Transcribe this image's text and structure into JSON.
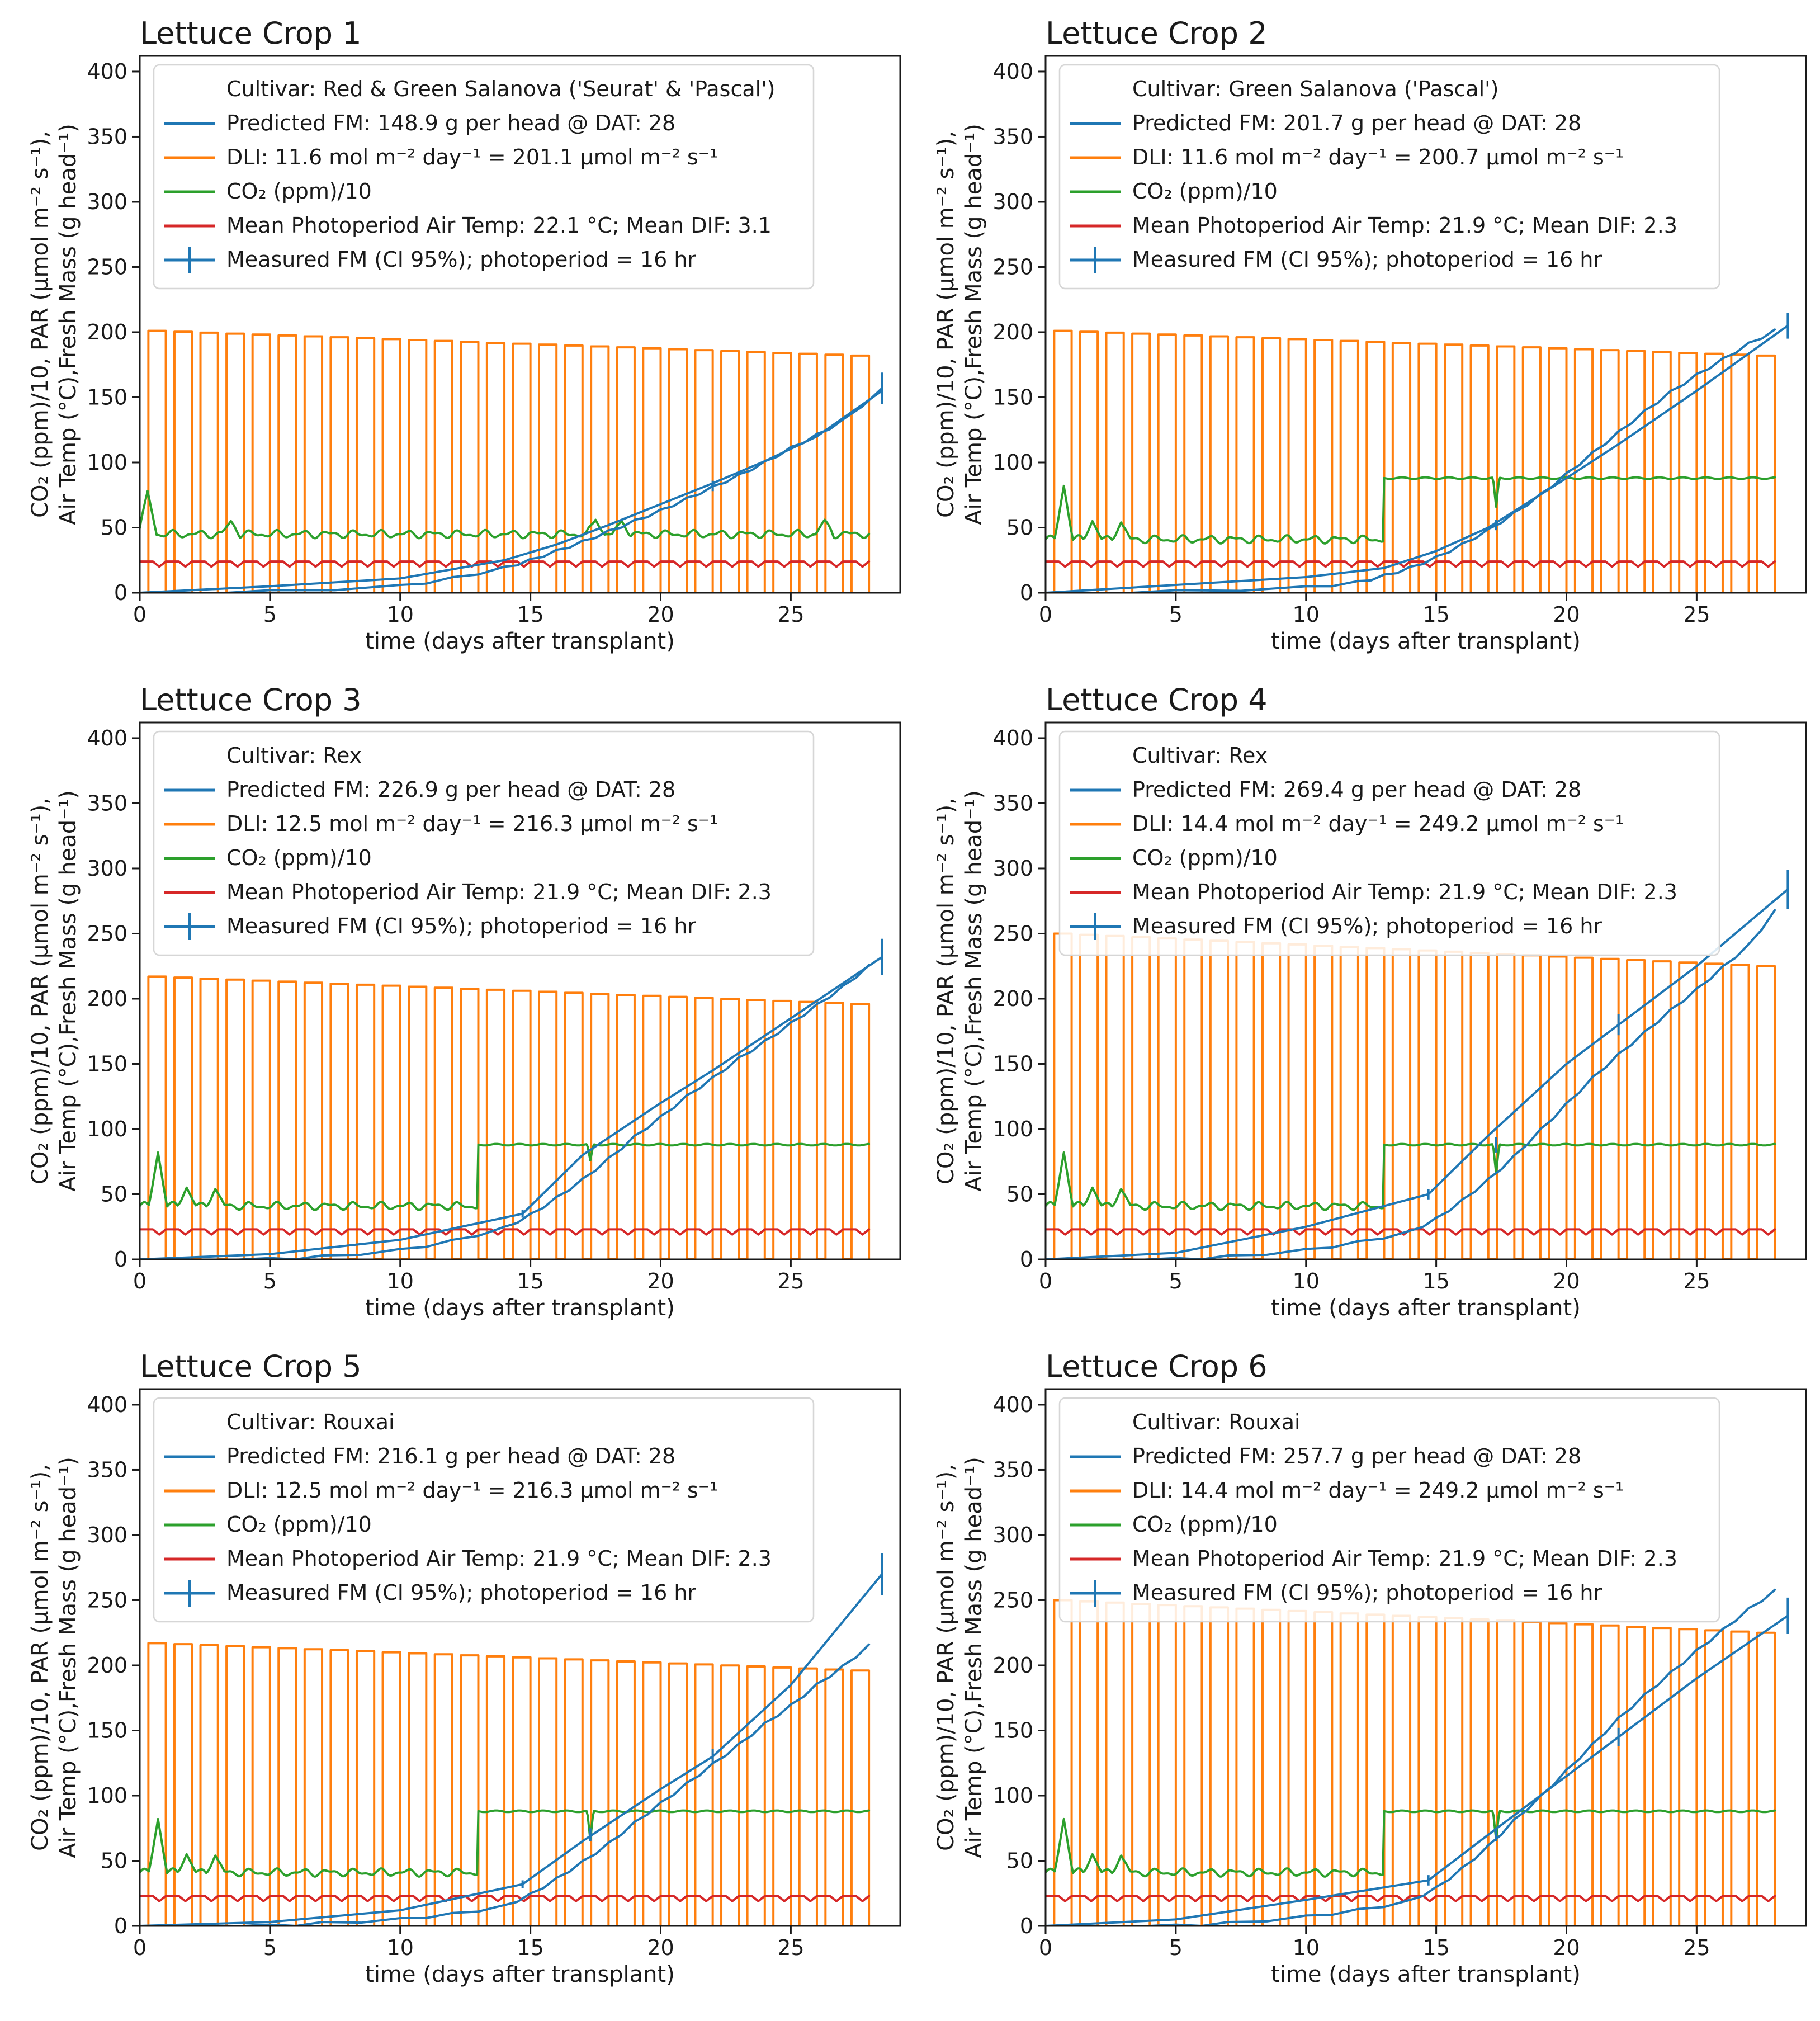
{
  "figure": {
    "shared": {
      "xlabel": "time (days after transplant)",
      "ylabel_line1": "CO₂ (ppm)/10, PAR (µmol m⁻² s⁻¹),",
      "ylabel_line2": "Air Temp (°C),Fresh Mass (g head⁻¹)",
      "x_ticks": [
        0,
        5,
        10,
        15,
        20,
        25
      ],
      "y_ticks": [
        0,
        50,
        100,
        150,
        200,
        250,
        300,
        350,
        400
      ],
      "xlim": [
        0,
        29.2
      ],
      "ylim": [
        0,
        412
      ],
      "legend_co2": "CO₂ (ppm)/10",
      "legend_measured": "Measured FM (CI 95%); photoperiod = 16 hr"
    },
    "colors": {
      "fm": "#1f77b4",
      "par": "#ff7f0e",
      "co2": "#2ca02c",
      "temp": "#d62728",
      "axis": "#1a1a1a"
    }
  },
  "chart_data": [
    {
      "type": "line",
      "title": "Lettuce Crop 1",
      "legend": {
        "cultivar": "Cultivar: Red & Green Salanova ('Seurat' & 'Pascal')",
        "predicted": "Predicted FM: 148.9 g per head @ DAT: 28",
        "dli": "DLI: 11.6 mol m⁻² day⁻¹ = 201.1 µmol m⁻² s⁻¹",
        "temp": "Mean Photoperiod Air Temp: 22.1 °C; Mean DIF: 3.1"
      },
      "par": {
        "start": 201,
        "end": 182,
        "days": 28
      },
      "co2": {
        "base_before": 45,
        "base_after": 45,
        "step_day": null,
        "dips": [],
        "spikes": [
          [
            0.3,
            78
          ],
          [
            3.5,
            55
          ],
          [
            17.5,
            56
          ],
          [
            18.5,
            55
          ],
          [
            26.3,
            56
          ]
        ]
      },
      "temp": {
        "mean": 22,
        "amplitude": 2
      },
      "predicted_fm": {
        "x": [
          0,
          5,
          10,
          14,
          16,
          18,
          20,
          22,
          24,
          26,
          28.5
        ],
        "y": [
          0,
          5,
          11,
          25,
          37,
          52,
          68,
          84,
          101,
          120,
          155
        ]
      },
      "measured_fm": {
        "x": [
          0,
          5,
          10,
          12,
          14,
          15,
          16,
          17,
          18,
          19,
          20,
          21,
          22,
          23,
          24,
          25,
          26,
          27,
          28.5
        ],
        "y": [
          0,
          2,
          6,
          12,
          20,
          26,
          33,
          40,
          48,
          56,
          64,
          73,
          82,
          91,
          101,
          112,
          122,
          133,
          157
        ]
      },
      "errorbars": [
        {
          "day": 22,
          "value": 82,
          "ci": 4
        },
        {
          "day": 28.5,
          "value": 157,
          "ci": 12
        }
      ]
    },
    {
      "type": "line",
      "title": "Lettuce Crop 2",
      "legend": {
        "cultivar": "Cultivar: Green Salanova ('Pascal')",
        "predicted": "Predicted FM: 201.7 g per head @ DAT: 28",
        "dli": "DLI: 11.6 mol m⁻² day⁻¹ = 200.7 µmol m⁻² s⁻¹",
        "temp": "Mean Photoperiod Air Temp: 21.9 °C; Mean DIF: 2.3"
      },
      "par": {
        "start": 201,
        "end": 182,
        "days": 28
      },
      "co2": {
        "base_before": 41,
        "base_after": 88,
        "step_day": 13,
        "dips": [
          [
            17.3,
            66
          ]
        ],
        "spikes": [
          [
            0.7,
            82
          ],
          [
            1.8,
            55
          ],
          [
            2.9,
            54
          ]
        ]
      },
      "temp": {
        "mean": 22,
        "amplitude": 2
      },
      "predicted_fm": {
        "x": [
          0,
          5,
          10,
          13,
          15,
          17,
          20,
          22,
          25,
          28.5
        ],
        "y": [
          0,
          6,
          12,
          19,
          32,
          50,
          88,
          114,
          155,
          205
        ]
      },
      "measured_fm": {
        "x": [
          0,
          5,
          10,
          12,
          13,
          14,
          15,
          16,
          17,
          18,
          19,
          20,
          21,
          22,
          23,
          24,
          25,
          26,
          27,
          28
        ],
        "y": [
          0,
          2,
          5,
          9,
          14,
          20,
          28,
          38,
          49,
          62,
          76,
          92,
          108,
          124,
          140,
          155,
          168,
          180,
          192,
          202
        ]
      },
      "errorbars": [
        {
          "day": 17.3,
          "value": 52,
          "ci": 4
        },
        {
          "day": 28.5,
          "value": 205,
          "ci": 10
        }
      ]
    },
    {
      "type": "line",
      "title": "Lettuce Crop 3",
      "legend": {
        "cultivar": "Cultivar: Rex",
        "predicted": "Predicted FM: 226.9 g per head @ DAT: 28",
        "dli": "DLI: 12.5 mol m⁻² day⁻¹ = 216.3 µmol m⁻² s⁻¹",
        "temp": "Mean Photoperiod Air Temp: 21.9 °C; Mean DIF: 2.3"
      },
      "par": {
        "start": 217,
        "end": 196,
        "days": 28
      },
      "co2": {
        "base_before": 41,
        "base_after": 88,
        "step_day": 13,
        "dips": [
          [
            17.3,
            76
          ]
        ],
        "spikes": [
          [
            0.7,
            82
          ],
          [
            1.8,
            55
          ],
          [
            2.9,
            54
          ]
        ]
      },
      "temp": {
        "mean": 21,
        "amplitude": 2
      },
      "predicted_fm": {
        "x": [
          0,
          5,
          10,
          14.7,
          17,
          20,
          22,
          25,
          28.5
        ],
        "y": [
          0,
          4,
          15,
          35,
          80,
          120,
          145,
          185,
          232
        ]
      },
      "measured_fm": {
        "x": [
          0,
          5,
          7,
          10,
          12,
          14,
          15,
          16,
          17,
          18,
          19,
          20,
          21,
          22,
          23,
          24,
          25,
          26,
          27,
          28
        ],
        "y": [
          0,
          1,
          3,
          8,
          15,
          25,
          35,
          48,
          62,
          78,
          95,
          110,
          126,
          140,
          155,
          168,
          182,
          196,
          210,
          226
        ]
      },
      "errorbars": [
        {
          "day": 14.7,
          "value": 35,
          "ci": 3
        },
        {
          "day": 28.5,
          "value": 232,
          "ci": 14
        }
      ]
    },
    {
      "type": "line",
      "title": "Lettuce Crop 4",
      "legend": {
        "cultivar": "Cultivar: Rex",
        "predicted": "Predicted FM: 269.4 g per head @ DAT: 28",
        "dli": "DLI: 14.4 mol m⁻² day⁻¹ = 249.2 µmol m⁻² s⁻¹",
        "temp": "Mean Photoperiod Air Temp: 21.9 °C; Mean DIF: 2.3"
      },
      "par": {
        "start": 250,
        "end": 225,
        "days": 28
      },
      "co2": {
        "base_before": 41,
        "base_after": 88,
        "step_day": 13,
        "dips": [
          [
            17.3,
            66
          ]
        ],
        "spikes": [
          [
            0.7,
            82
          ],
          [
            1.8,
            55
          ],
          [
            2.9,
            54
          ]
        ]
      },
      "temp": {
        "mean": 21,
        "amplitude": 2
      },
      "predicted_fm": {
        "x": [
          0,
          5,
          10,
          14.7,
          17,
          20,
          22,
          25,
          28.5
        ],
        "y": [
          0,
          5,
          25,
          50,
          95,
          150,
          180,
          225,
          284
        ]
      },
      "measured_fm": {
        "x": [
          0,
          5,
          7,
          10,
          12,
          14,
          15,
          16,
          17,
          18,
          19,
          20,
          21,
          22,
          23,
          24,
          25,
          26,
          27,
          28
        ],
        "y": [
          0,
          1,
          3,
          8,
          14,
          22,
          32,
          46,
          62,
          80,
          100,
          120,
          140,
          158,
          175,
          192,
          208,
          225,
          242,
          268
        ]
      },
      "errorbars": [
        {
          "day": 14.7,
          "value": 50,
          "ci": 4
        },
        {
          "day": 17.3,
          "value": 88,
          "ci": 6
        },
        {
          "day": 22,
          "value": 180,
          "ci": 8
        },
        {
          "day": 28.5,
          "value": 284,
          "ci": 15
        }
      ]
    },
    {
      "type": "line",
      "title": "Lettuce Crop 5",
      "legend": {
        "cultivar": "Cultivar: Rouxai",
        "predicted": "Predicted FM: 216.1 g per head @ DAT: 28",
        "dli": "DLI: 12.5 mol m⁻² day⁻¹ = 216.3 µmol m⁻² s⁻¹",
        "temp": "Mean Photoperiod Air Temp: 21.9 °C; Mean DIF: 2.3"
      },
      "par": {
        "start": 217,
        "end": 196,
        "days": 28
      },
      "co2": {
        "base_before": 41,
        "base_after": 88,
        "step_day": 13,
        "dips": [
          [
            17.3,
            66
          ]
        ],
        "spikes": [
          [
            0.7,
            82
          ],
          [
            1.8,
            55
          ],
          [
            2.9,
            54
          ]
        ]
      },
      "temp": {
        "mean": 21,
        "amplitude": 2
      },
      "predicted_fm": {
        "x": [
          0,
          5,
          10,
          14.7,
          17,
          20,
          22,
          25,
          28.5
        ],
        "y": [
          0,
          3,
          12,
          32,
          65,
          105,
          130,
          185,
          270
        ]
      },
      "measured_fm": {
        "x": [
          0,
          5,
          7,
          10,
          12,
          14,
          15,
          16,
          17,
          18,
          19,
          20,
          21,
          22,
          23,
          24,
          25,
          26,
          27,
          28
        ],
        "y": [
          0,
          1,
          3,
          6,
          10,
          16,
          25,
          37,
          50,
          64,
          80,
          95,
          110,
          125,
          140,
          156,
          170,
          186,
          200,
          216
        ]
      },
      "errorbars": [
        {
          "day": 14.7,
          "value": 32,
          "ci": 3
        },
        {
          "day": 17.3,
          "value": 70,
          "ci": 5
        },
        {
          "day": 22,
          "value": 130,
          "ci": 6
        },
        {
          "day": 28.5,
          "value": 270,
          "ci": 16
        }
      ]
    },
    {
      "type": "line",
      "title": "Lettuce Crop 6",
      "legend": {
        "cultivar": "Cultivar: Rouxai",
        "predicted": "Predicted FM: 257.7 g per head @ DAT: 28",
        "dli": "DLI: 14.4 mol m⁻² day⁻¹ = 249.2 µmol m⁻² s⁻¹",
        "temp": "Mean Photoperiod Air Temp: 21.9 °C; Mean DIF: 2.3"
      },
      "par": {
        "start": 250,
        "end": 225,
        "days": 28
      },
      "co2": {
        "base_before": 41,
        "base_after": 88,
        "step_day": 13,
        "dips": [
          [
            17.3,
            66
          ]
        ],
        "spikes": [
          [
            0.7,
            82
          ],
          [
            1.8,
            55
          ],
          [
            2.9,
            54
          ]
        ]
      },
      "temp": {
        "mean": 21,
        "amplitude": 2
      },
      "predicted_fm": {
        "x": [
          0,
          5,
          10,
          14.7,
          17,
          20,
          22,
          25,
          28.5
        ],
        "y": [
          0,
          5,
          20,
          35,
          70,
          115,
          145,
          190,
          238
        ]
      },
      "measured_fm": {
        "x": [
          0,
          5,
          7,
          10,
          12,
          14,
          15,
          16,
          17,
          18,
          19,
          20,
          21,
          22,
          23,
          24,
          25,
          26,
          27,
          28
        ],
        "y": [
          0,
          1,
          3,
          8,
          13,
          20,
          30,
          45,
          62,
          82,
          100,
          120,
          140,
          160,
          178,
          195,
          212,
          228,
          244,
          258
        ]
      },
      "errorbars": [
        {
          "day": 14.7,
          "value": 35,
          "ci": 4
        },
        {
          "day": 17.3,
          "value": 70,
          "ci": 5
        },
        {
          "day": 22,
          "value": 145,
          "ci": 7
        },
        {
          "day": 28.5,
          "value": 238,
          "ci": 14
        }
      ]
    }
  ]
}
